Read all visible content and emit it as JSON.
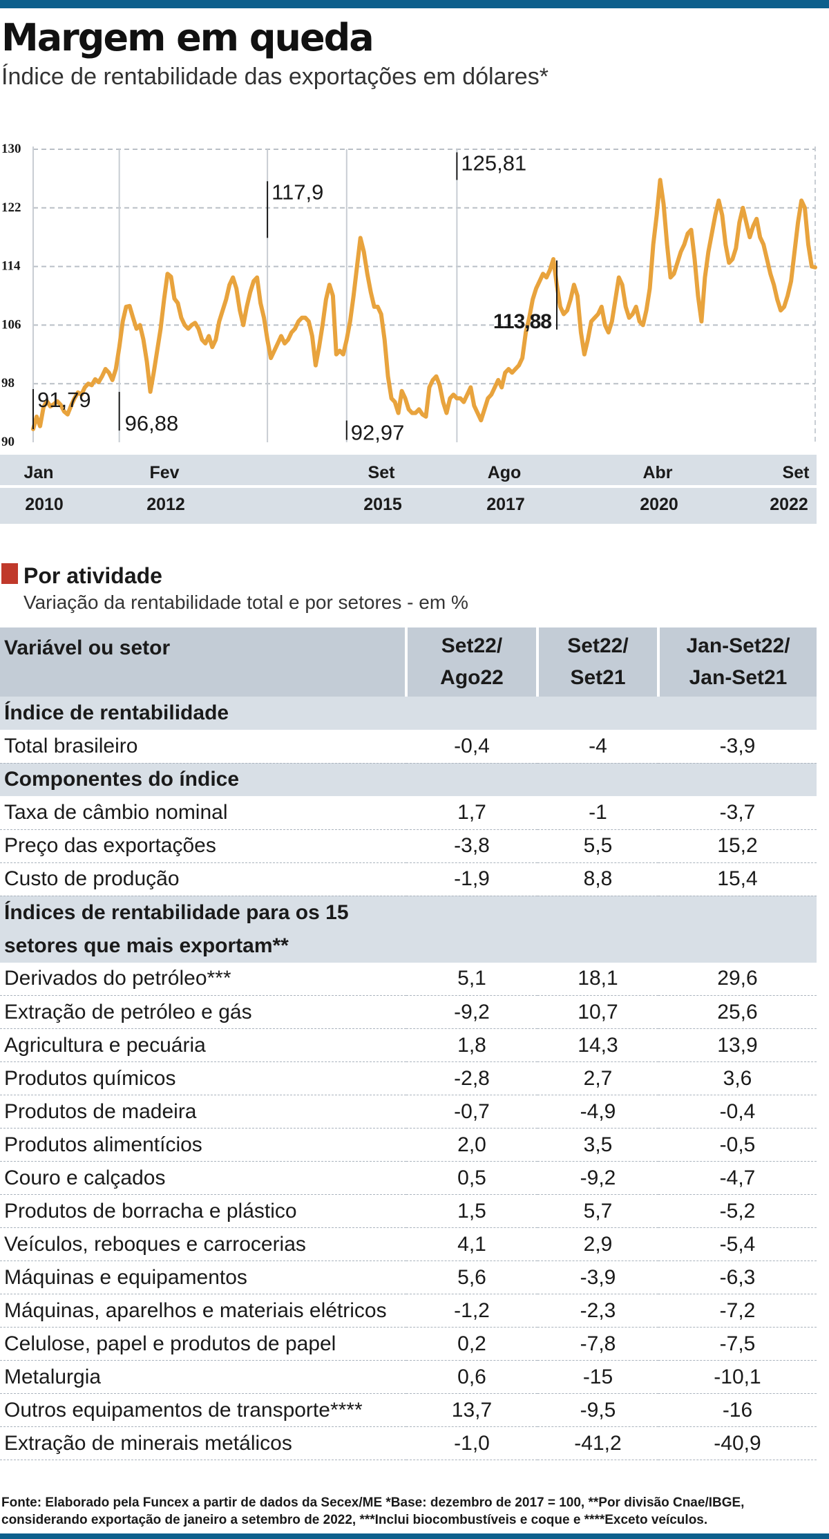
{
  "header": {
    "title": "Margem em queda",
    "subtitle": "Índice de rentabilidade das exportações em dólares*"
  },
  "chart_data": {
    "type": "line",
    "ylim": [
      90,
      130
    ],
    "yticks": [
      "130",
      "122",
      "114",
      "106",
      "98",
      "90"
    ],
    "x_labels": [
      {
        "month": "Jan",
        "year": "2010"
      },
      {
        "month": "Fev",
        "year": "2012"
      },
      {
        "month": "Set",
        "year": "2015"
      },
      {
        "month": "Ago",
        "year": "2017"
      },
      {
        "month": "Abr",
        "year": "2020"
      },
      {
        "month": "Set",
        "year": "2022"
      }
    ],
    "annotations": [
      {
        "label": "91,79",
        "value": 91.79
      },
      {
        "label": "96,88",
        "value": 96.88
      },
      {
        "label": "117,9",
        "value": 117.9
      },
      {
        "label": "92,97",
        "value": 92.97
      },
      {
        "label": "125,81",
        "value": 125.81
      },
      {
        "label": "113,88",
        "value": 113.88
      }
    ],
    "color": "#e8a33d",
    "series_values": [
      91.8,
      93.5,
      92.2,
      94.8,
      95.6,
      94.9,
      95.2,
      95.6,
      95.1,
      94.2,
      93.8,
      95.0,
      96.0,
      96.8,
      96.5,
      97.5,
      98.0,
      97.8,
      98.6,
      98.2,
      99.0,
      100.0,
      99.5,
      98.5,
      100.0,
      103.0,
      106.5,
      108.5,
      108.6,
      107.0,
      105.5,
      106.0,
      104.0,
      101.0,
      96.9,
      99.5,
      102.5,
      105.5,
      109.5,
      113.0,
      112.6,
      109.6,
      109.0,
      107.0,
      106.0,
      105.5,
      106.0,
      106.3,
      105.5,
      104.0,
      103.5,
      104.5,
      103.0,
      104.0,
      106.5,
      108.0,
      109.5,
      111.5,
      112.5,
      111.0,
      108.0,
      106.0,
      108.5,
      110.5,
      112.0,
      112.5,
      109.0,
      107.0,
      104.0,
      101.5,
      102.5,
      103.5,
      104.5,
      103.5,
      104.0,
      105.0,
      105.5,
      106.5,
      107.0,
      107.0,
      106.5,
      104.5,
      100.5,
      103.0,
      106.0,
      109.5,
      111.5,
      110.0,
      102.0,
      102.5,
      102.0,
      104.0,
      106.5,
      110.0,
      114.0,
      117.9,
      116.0,
      113.0,
      110.5,
      108.5,
      108.5,
      107.5,
      104.0,
      99.0,
      96.0,
      95.5,
      94.0,
      97.0,
      96.0,
      94.5,
      94.0,
      94.0,
      94.5,
      93.8,
      93.5,
      97.5,
      98.5,
      99.0,
      97.8,
      95.5,
      94.0,
      96.0,
      96.5,
      96.0,
      96.0,
      95.5,
      96.5,
      97.5,
      95.0,
      94.0,
      93.0,
      94.5,
      96.0,
      96.5,
      97.5,
      98.5,
      97.5,
      99.5,
      100.0,
      99.5,
      100.0,
      100.5,
      101.5,
      105.0,
      107.0,
      109.5,
      111.0,
      112.0,
      113.0,
      112.5,
      113.5,
      115.0,
      111.5,
      108.5,
      107.5,
      108.0,
      109.5,
      111.5,
      110.0,
      105.0,
      102.0,
      104.0,
      106.5,
      107.0,
      107.5,
      108.5,
      106.0,
      105.0,
      106.5,
      109.5,
      112.5,
      111.5,
      108.5,
      107.0,
      107.5,
      108.5,
      106.5,
      106.0,
      108.0,
      111.0,
      117.0,
      121.0,
      125.81,
      122.5,
      117.0,
      112.5,
      113.0,
      114.5,
      116.0,
      117.0,
      118.5,
      119.0,
      115.0,
      110.0,
      106.5,
      112.5,
      116.0,
      118.5,
      121.0,
      123.0,
      121.0,
      117.0,
      114.5,
      115.0,
      116.5,
      120.0,
      122.0,
      120.0,
      118.0,
      119.5,
      120.5,
      118.0,
      117.0,
      115.0,
      113.0,
      111.5,
      109.5,
      108.0,
      108.5,
      110.0,
      112.0,
      116.0,
      120.0,
      123.0,
      122.0,
      117.0,
      114.0,
      113.88
    ]
  },
  "section": {
    "title": "Por atividade",
    "subtitle": "Variação da rentabilidade total e por setores - em %"
  },
  "table": {
    "headers": [
      "Variável ou setor",
      "Set22/\nAgo22",
      "Set22/\nSet21",
      "Jan-Set22/\nJan-Set21"
    ],
    "rows": [
      {
        "group": "Índice de rentabilidade"
      },
      {
        "label": "Total brasileiro",
        "values": [
          "-0,4",
          "-4",
          "-3,9"
        ]
      },
      {
        "group": "Componentes do índice"
      },
      {
        "label": "Taxa de câmbio nominal",
        "values": [
          "1,7",
          "-1",
          "-3,7"
        ]
      },
      {
        "label": "Preço das exportações",
        "values": [
          "-3,8",
          "5,5",
          "15,2"
        ]
      },
      {
        "label": "Custo de produção",
        "values": [
          "-1,9",
          "8,8",
          "15,4"
        ]
      },
      {
        "group": "Índices de rentabilidade para os 15\nsetores que mais exportam**"
      },
      {
        "label": "Derivados do petróleo***",
        "values": [
          "5,1",
          "18,1",
          "29,6"
        ]
      },
      {
        "label": "Extração de petróleo e gás",
        "values": [
          "-9,2",
          "10,7",
          "25,6"
        ]
      },
      {
        "label": "Agricultura e pecuária",
        "values": [
          "1,8",
          "14,3",
          "13,9"
        ]
      },
      {
        "label": "Produtos químicos",
        "values": [
          "-2,8",
          "2,7",
          "3,6"
        ]
      },
      {
        "label": "Produtos de madeira",
        "values": [
          "-0,7",
          "-4,9",
          "-0,4"
        ]
      },
      {
        "label": "Produtos alimentícios",
        "values": [
          "2,0",
          "3,5",
          "-0,5"
        ]
      },
      {
        "label": "Couro e calçados",
        "values": [
          "0,5",
          "-9,2",
          "-4,7"
        ]
      },
      {
        "label": "Produtos de borracha e plástico",
        "values": [
          "1,5",
          "5,7",
          "-5,2"
        ]
      },
      {
        "label": "Veículos, reboques e carrocerias",
        "values": [
          "4,1",
          "2,9",
          "-5,4"
        ]
      },
      {
        "label": "Máquinas e equipamentos",
        "values": [
          "5,6",
          "-3,9",
          "-6,3"
        ]
      },
      {
        "label": "Máquinas, aparelhos e materiais elétricos",
        "values": [
          "-1,2",
          "-2,3",
          "-7,2"
        ]
      },
      {
        "label": "Celulose, papel e produtos de papel",
        "values": [
          "0,2",
          "-7,8",
          "-7,5"
        ]
      },
      {
        "label": "Metalurgia",
        "values": [
          "0,6",
          "-15",
          "-10,1"
        ]
      },
      {
        "label": "Outros equipamentos de transporte****",
        "values": [
          "13,7",
          "-9,5",
          "-16"
        ]
      },
      {
        "label": "Extração de minerais metálicos",
        "values": [
          "-1,0",
          "-41,2",
          "-40,9"
        ]
      }
    ]
  },
  "footnote": "Fonte: Elaborado pela Funcex a partir de dados da Secex/ME  *Base: dezembro de 2017 = 100, **Por divisão Cnae/IBGE, considerando exportação de janeiro a setembro de 2022, ***Inclui biocombustíveis e coque e ****Exceto veículos."
}
